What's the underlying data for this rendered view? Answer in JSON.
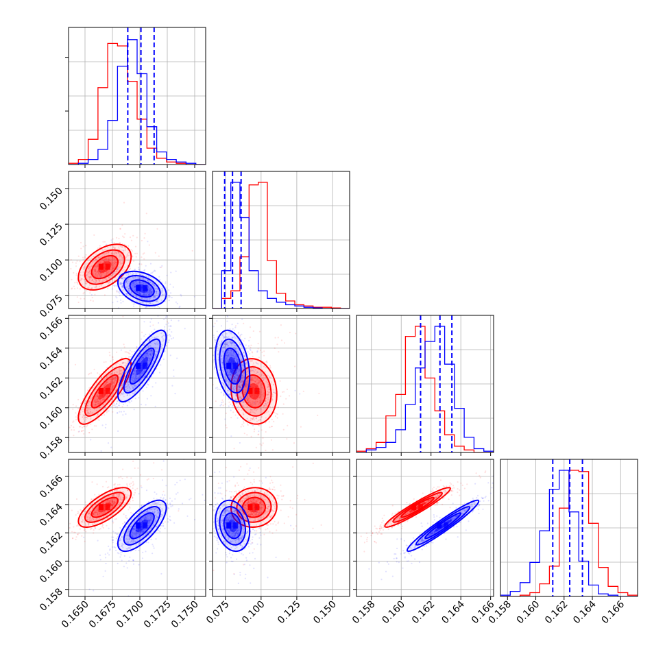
{
  "chart_data": {
    "type": "corner",
    "grid": true,
    "colors": {
      "red": "#ff0000",
      "blue": "#0000ff"
    },
    "series": [
      {
        "color": "red",
        "mean": [
          0.1668,
          0.095,
          0.1611,
          0.1638
        ],
        "std": [
          0.0012,
          0.008,
          0.0011,
          0.0007
        ],
        "hist": [
          [
            1,
            4,
            20,
            61,
            96,
            94,
            66,
            36,
            13,
            5,
            2,
            1,
            0,
            0
          ],
          [
            0,
            8,
            14,
            41,
            98,
            100,
            38,
            12,
            6,
            3,
            2,
            1,
            1,
            0.5,
            0
          ],
          [
            1,
            3,
            8,
            29,
            46,
            92,
            100,
            59,
            33,
            14,
            5,
            2,
            0,
            0
          ],
          [
            0,
            0,
            1,
            3,
            10,
            24,
            70,
            100,
            99,
            58,
            23,
            8,
            3,
            1
          ]
        ]
      },
      {
        "color": "blue",
        "mean": [
          0.1702,
          0.08,
          0.1628,
          0.1625
        ],
        "std": [
          0.0011,
          0.006,
          0.0012,
          0.0009
        ],
        "hist": [
          [
            0,
            1,
            4,
            12,
            35,
            78,
            99,
            72,
            30,
            10,
            4,
            2,
            1,
            0
          ],
          [
            0,
            30,
            100,
            72,
            30,
            14,
            8,
            5,
            3,
            2,
            1,
            0.5,
            0,
            0,
            0
          ],
          [
            0,
            2,
            4,
            8,
            18,
            38,
            67,
            88,
            100,
            70,
            35,
            12,
            3,
            1
          ],
          [
            1,
            4,
            11,
            27,
            52,
            85,
            100,
            67,
            28,
            9,
            2,
            1,
            0,
            0
          ]
        ]
      }
    ],
    "quantile_lines": [
      [
        0.1689,
        0.1701,
        0.1713
      ],
      [
        0.0745,
        0.08,
        0.086
      ],
      [
        0.1613,
        0.1626,
        0.1634
      ],
      [
        0.1612,
        0.1624,
        0.1633
      ]
    ],
    "correlations": {
      "red": {
        "1-0": 0.45,
        "2-0": 0.8,
        "2-1": -0.1,
        "3-0": 0.7,
        "3-1": 0.05,
        "3-2": 0.95
      },
      "blue": {
        "1-0": -0.35,
        "2-0": 0.8,
        "2-1": -0.3,
        "3-0": 0.7,
        "3-1": -0.2,
        "3-2": 0.96
      }
    },
    "axes": [
      {
        "range": [
          0.1635,
          0.176
        ],
        "ticks": [
          0.165,
          0.1675,
          0.17,
          0.1725,
          0.175
        ],
        "tick_labels": [
          "0.1650",
          "0.1675",
          "0.1700",
          "0.1725",
          "0.1750"
        ]
      },
      {
        "range": [
          0.066,
          0.162
        ],
        "ticks": [
          0.075,
          0.1,
          0.125,
          0.15
        ],
        "tick_labels": [
          "0.075",
          "0.100",
          "0.125",
          "0.150"
        ]
      },
      {
        "range": [
          0.157,
          0.1662
        ],
        "ticks": [
          0.158,
          0.16,
          0.162,
          0.164,
          0.166
        ],
        "tick_labels": [
          "0.158",
          "0.160",
          "0.162",
          "0.164",
          "0.166"
        ]
      },
      {
        "range": [
          0.1575,
          0.1672
        ],
        "ticks": [
          0.158,
          0.16,
          0.162,
          0.164,
          0.166
        ],
        "tick_labels": [
          "0.158",
          "0.160",
          "0.162",
          "0.164",
          "0.166"
        ]
      }
    ]
  }
}
